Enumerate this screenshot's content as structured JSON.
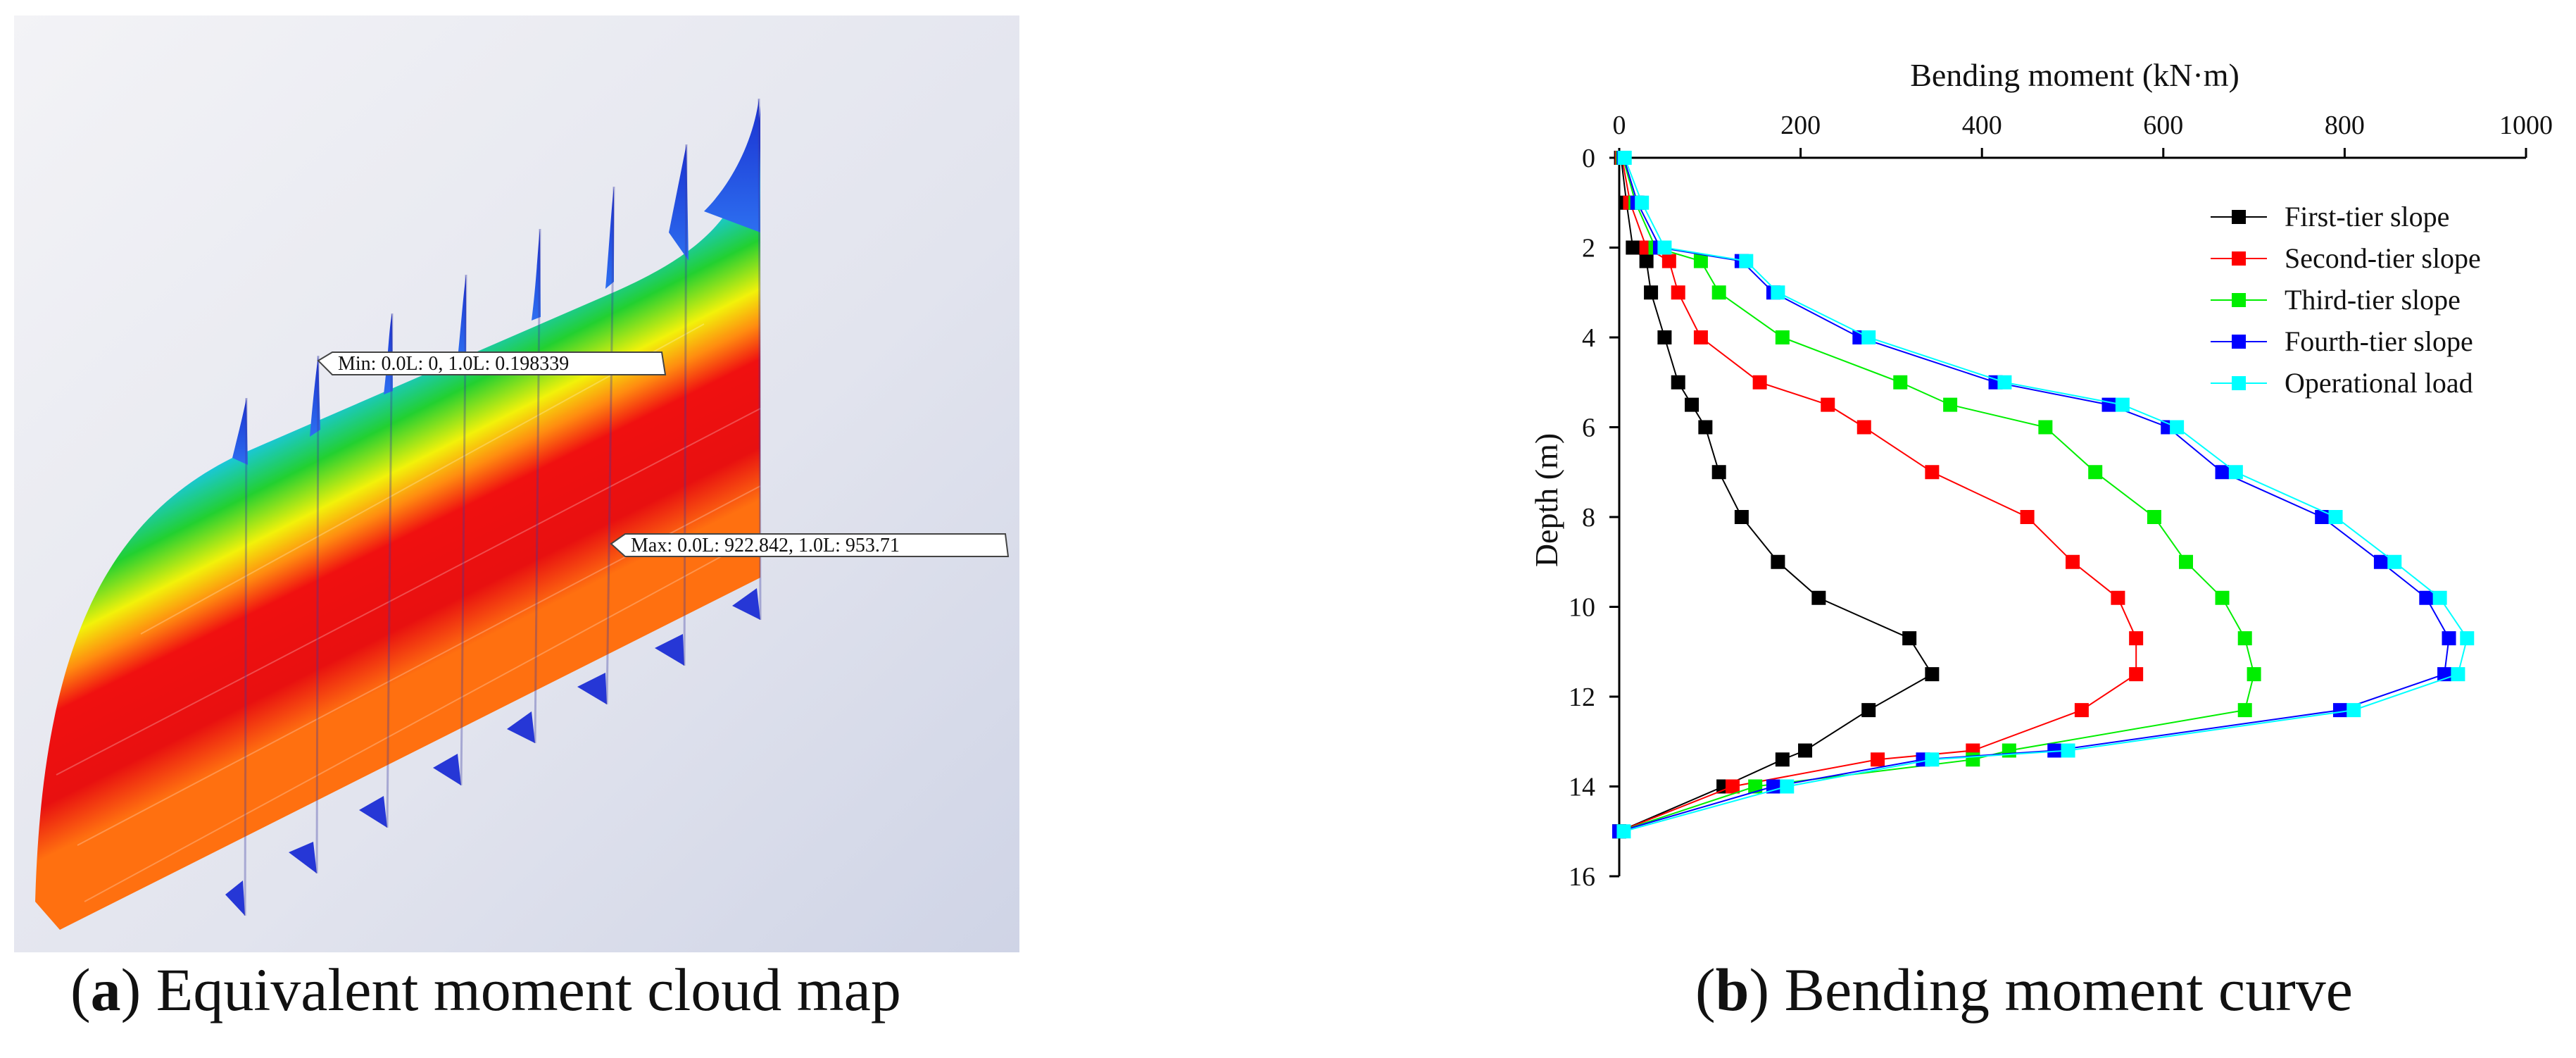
{
  "panel_a": {
    "caption_letter": "a",
    "caption_text": "Equivalent moment cloud map",
    "min_label": "Min: 0.0L: 0, 1.0L: 0.198339",
    "max_label": "Max: 0.0L: 922.842, 1.0L: 953.71",
    "colors": {
      "blue": "#1a2fd0",
      "cyan": "#19c7e6",
      "green": "#22d030",
      "yellow": "#f2f20a",
      "orange": "#ff8a10",
      "red": "#f01010"
    }
  },
  "panel_b": {
    "caption_letter": "b",
    "caption_text": "Bending moment curve"
  },
  "chart_data": {
    "type": "line",
    "xlabel": "Bending moment (kN·m)",
    "ylabel": "Depth (m)",
    "xlim": [
      0,
      1000
    ],
    "ylim": [
      16,
      0
    ],
    "x_ticks": [
      0,
      200,
      400,
      600,
      800,
      1000
    ],
    "y_ticks": [
      0,
      2,
      4,
      6,
      8,
      10,
      12,
      14,
      16
    ],
    "x_tick_labels": [
      "0",
      "200",
      "400",
      "600",
      "800",
      "1000"
    ],
    "y_tick_labels": [
      "0",
      "2",
      "4",
      "6",
      "8",
      "10",
      "12",
      "14",
      "16"
    ],
    "legend_position": "top-right",
    "series": [
      {
        "name": "First-tier slope",
        "color": "#000000",
        "points": [
          [
            2,
            0
          ],
          [
            8,
            1
          ],
          [
            15,
            2
          ],
          [
            30,
            2.3
          ],
          [
            35,
            3
          ],
          [
            50,
            4
          ],
          [
            65,
            5
          ],
          [
            80,
            5.5
          ],
          [
            95,
            6
          ],
          [
            110,
            7
          ],
          [
            135,
            8
          ],
          [
            175,
            9
          ],
          [
            220,
            9.8
          ],
          [
            320,
            10.7
          ],
          [
            345,
            11.5
          ],
          [
            275,
            12.3
          ],
          [
            205,
            13.2
          ],
          [
            180,
            13.4
          ],
          [
            115,
            14
          ],
          [
            0,
            15
          ]
        ]
      },
      {
        "name": "Second-tier slope",
        "color": "#ff0000",
        "points": [
          [
            3,
            0
          ],
          [
            12,
            1
          ],
          [
            30,
            2
          ],
          [
            55,
            2.3
          ],
          [
            65,
            3
          ],
          [
            90,
            4
          ],
          [
            155,
            5
          ],
          [
            230,
            5.5
          ],
          [
            270,
            6
          ],
          [
            345,
            7
          ],
          [
            450,
            8
          ],
          [
            500,
            9
          ],
          [
            550,
            9.8
          ],
          [
            570,
            10.7
          ],
          [
            570,
            11.5
          ],
          [
            510,
            12.3
          ],
          [
            390,
            13.2
          ],
          [
            285,
            13.4
          ],
          [
            125,
            14
          ],
          [
            0,
            15
          ]
        ]
      },
      {
        "name": "Third-tier slope",
        "color": "#00ee00",
        "points": [
          [
            4,
            0
          ],
          [
            18,
            1
          ],
          [
            40,
            2
          ],
          [
            90,
            2.3
          ],
          [
            110,
            3
          ],
          [
            180,
            4
          ],
          [
            310,
            5
          ],
          [
            365,
            5.5
          ],
          [
            470,
            6
          ],
          [
            525,
            7
          ],
          [
            590,
            8
          ],
          [
            625,
            9
          ],
          [
            665,
            9.8
          ],
          [
            690,
            10.7
          ],
          [
            700,
            11.5
          ],
          [
            690,
            12.3
          ],
          [
            430,
            13.2
          ],
          [
            390,
            13.4
          ],
          [
            150,
            14
          ],
          [
            0,
            15
          ]
        ]
      },
      {
        "name": "Fourth-tier slope",
        "color": "#0000ff",
        "points": [
          [
            5,
            0
          ],
          [
            20,
            1
          ],
          [
            45,
            2
          ],
          [
            135,
            2.3
          ],
          [
            170,
            3
          ],
          [
            265,
            4
          ],
          [
            415,
            5
          ],
          [
            540,
            5.5
          ],
          [
            605,
            6
          ],
          [
            665,
            7
          ],
          [
            775,
            8
          ],
          [
            840,
            9
          ],
          [
            890,
            9.8
          ],
          [
            915,
            10.7
          ],
          [
            910,
            11.5
          ],
          [
            795,
            12.3
          ],
          [
            480,
            13.2
          ],
          [
            335,
            13.4
          ],
          [
            170,
            14
          ],
          [
            0,
            15
          ]
        ]
      },
      {
        "name": "Operational load",
        "color": "#00ffff",
        "points": [
          [
            6,
            0
          ],
          [
            25,
            1
          ],
          [
            50,
            2
          ],
          [
            140,
            2.3
          ],
          [
            175,
            3
          ],
          [
            275,
            4
          ],
          [
            425,
            5
          ],
          [
            555,
            5.5
          ],
          [
            615,
            6
          ],
          [
            680,
            7
          ],
          [
            790,
            8
          ],
          [
            855,
            9
          ],
          [
            905,
            9.8
          ],
          [
            935,
            10.7
          ],
          [
            925,
            11.5
          ],
          [
            810,
            12.3
          ],
          [
            495,
            13.2
          ],
          [
            345,
            13.4
          ],
          [
            185,
            14
          ],
          [
            5,
            15
          ]
        ]
      }
    ]
  }
}
